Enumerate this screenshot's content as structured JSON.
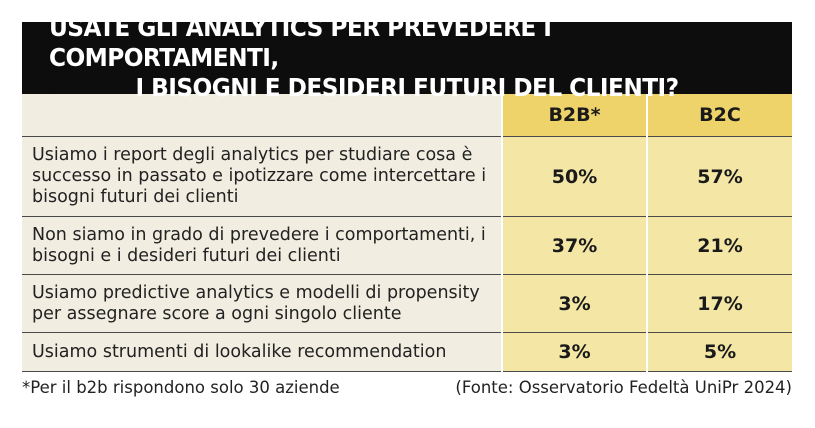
{
  "title": {
    "line1": "USATE GLI ANALYTICS PER PREVEDERE I COMPORTAMENTI,",
    "line2": "I BISOGNI E DESIDERI FUTURI DEL CLIENTI?"
  },
  "columns": [
    "B2B*",
    "B2C"
  ],
  "rows": [
    {
      "label": "Usiamo i report degli analytics per studiare cosa è successo in passato e ipotizzare come intercettare i bisogni futuri dei clienti",
      "b2b": "50%",
      "b2c": "57%"
    },
    {
      "label": "Non siamo in grado di prevedere i comportamenti, i bisogni e i desideri futuri dei clienti",
      "b2b": "37%",
      "b2c": "21%"
    },
    {
      "label": "Usiamo predictive analytics e modelli di propensity per assegnare score a ogni singolo cliente",
      "b2b": "3%",
      "b2c": "17%"
    },
    {
      "label": "Usiamo strumenti di lookalike recommendation",
      "b2b": "3%",
      "b2c": "5%"
    }
  ],
  "footer": {
    "note": "*Per il b2b rispondono solo 30 aziende",
    "source": "(Fonte: Osservatorio Fedeltà UniPr 2024)"
  }
}
